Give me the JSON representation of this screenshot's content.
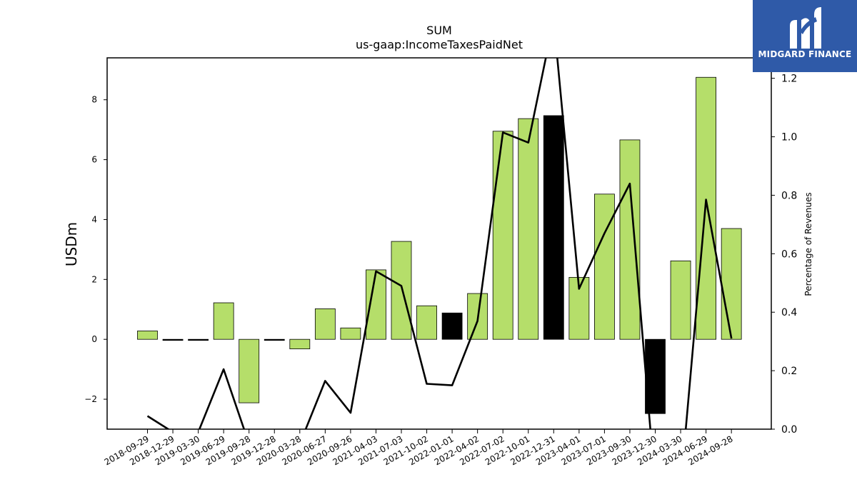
{
  "logo": {
    "text": "MIDGARD FINANCE",
    "icon": "midgard-m-logo-icon"
  },
  "chart_data": {
    "type": "bar",
    "title": "SUM",
    "subtitle": "us-gaap:IncomeTaxesPaidNet",
    "ylabel": "USDm",
    "y2label": "Percentage of Revenues",
    "ylim": [
      -3.0,
      9.4
    ],
    "y2lim": [
      0.0,
      1.27
    ],
    "yticks": [
      -2,
      0,
      2,
      4,
      6,
      8
    ],
    "y2ticks": [
      "0.0",
      "0.2",
      "0.4",
      "0.6",
      "0.8",
      "1.0",
      "1.2"
    ],
    "ytick_labels": [
      "−2",
      "0",
      "2",
      "4",
      "6",
      "8"
    ],
    "categories": [
      "2018-09-29",
      "2018-12-29",
      "2019-03-30",
      "2019-06-29",
      "2019-09-28",
      "2019-12-28",
      "2020-03-28",
      "2020-06-27",
      "2020-09-26",
      "2021-04-03",
      "2021-07-03",
      "2021-10-02",
      "2022-01-01",
      "2022-04-02",
      "2022-07-02",
      "2022-10-01",
      "2022-12-31",
      "2023-04-01",
      "2023-07-01",
      "2023-09-30",
      "2023-12-30",
      "2024-03-30",
      "2024-06-29",
      "2024-09-28"
    ],
    "series": [
      {
        "type": "bar",
        "values": [
          0.28,
          -0.02,
          -0.02,
          1.22,
          -2.12,
          -0.02,
          -0.32,
          1.02,
          0.38,
          2.32,
          3.27,
          1.12,
          0.88,
          1.53,
          6.95,
          7.37,
          7.47,
          2.07,
          4.85,
          6.66,
          -2.48,
          2.62,
          8.75,
          3.7
        ],
        "colors": [
          "#b5de6a",
          "#000000",
          "#000000",
          "#b5de6a",
          "#b5de6a",
          "#000000",
          "#b5de6a",
          "#b5de6a",
          "#b5de6a",
          "#b5de6a",
          "#b5de6a",
          "#b5de6a",
          "#000000",
          "#b5de6a",
          "#b5de6a",
          "#b5de6a",
          "#000000",
          "#b5de6a",
          "#b5de6a",
          "#b5de6a",
          "#000000",
          "#b5de6a",
          "#b5de6a",
          "#b5de6a"
        ]
      },
      {
        "type": "line",
        "axis": "right",
        "values": [
          0.045,
          -0.01,
          -0.01,
          0.205,
          -0.05,
          null,
          -0.05,
          0.165,
          0.056,
          0.54,
          0.49,
          0.155,
          0.15,
          0.37,
          1.015,
          0.98,
          1.4,
          0.48,
          0.67,
          0.84,
          -0.2,
          -0.2,
          0.785,
          0.31
        ],
        "color": "#000000"
      }
    ],
    "grid": false,
    "legend": "none"
  }
}
